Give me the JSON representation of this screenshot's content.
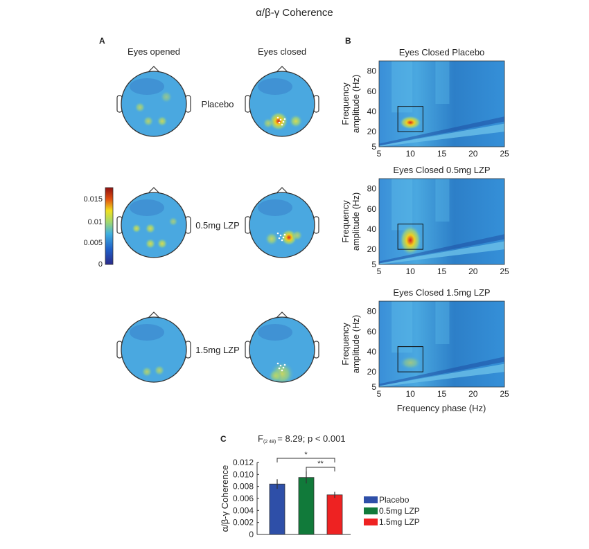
{
  "title": "α/β-γ Coherence",
  "panel_a": {
    "label": "A",
    "columns": [
      "Eyes opened",
      "Eyes closed"
    ],
    "rows": [
      "Placebo",
      "0.5mg LZP",
      "1.5mg LZP"
    ],
    "colorbar": {
      "ticks": [
        "0.015",
        "0.01",
        "0.005",
        "0"
      ],
      "range": [
        0,
        0.018
      ]
    }
  },
  "panel_b": {
    "label": "B",
    "titles": [
      "Eyes Closed Placebo",
      "Eyes Closed 0.5mg LZP",
      "Eyes Closed 1.5mg LZP"
    ],
    "ylabel": [
      "Frequency",
      "amplitude (Hz)"
    ],
    "xlabel": "Frequency phase (Hz)",
    "xticks": [
      "5",
      "10",
      "15",
      "20",
      "25"
    ],
    "yticks": [
      "5",
      "20",
      "40",
      "60",
      "80"
    ],
    "xlim": [
      5,
      25
    ],
    "ylim": [
      5,
      90
    ],
    "box": {
      "x": [
        8,
        12
      ],
      "y": [
        20,
        45
      ]
    },
    "peak_intensity": [
      0.85,
      1.0,
      0.35
    ]
  },
  "chart_data": {
    "type": "bar",
    "panel_label": "C",
    "title": "F(2 48) = 8.29; p < 0.001",
    "title_main": "F",
    "title_sub": "(2 48)",
    "title_rest": "= 8.29; p < 0.001",
    "ylabel": "α/β-γ Coherence",
    "ylim": [
      0,
      0.012
    ],
    "yticks": [
      "0.012",
      "0.010",
      "0.008",
      "0.006",
      "0.004",
      "0.002",
      "0"
    ],
    "categories": [
      "Placebo",
      "0.5mg LZP",
      "1.5mg LZP"
    ],
    "values": [
      0.0084,
      0.0095,
      0.0066
    ],
    "errors": [
      0.0008,
      0.001,
      0.0005
    ],
    "colors": [
      "#2e4fa8",
      "#117a3a",
      "#ee2222"
    ],
    "significance": [
      {
        "pair": [
          "Placebo",
          "1.5mg LZP"
        ],
        "label": "*"
      },
      {
        "pair": [
          "0.5mg LZP",
          "1.5mg LZP"
        ],
        "label": "**"
      }
    ],
    "legend": [
      "Placebo",
      "0.5mg LZP",
      "1.5mg LZP"
    ],
    "legend_position": "right"
  }
}
